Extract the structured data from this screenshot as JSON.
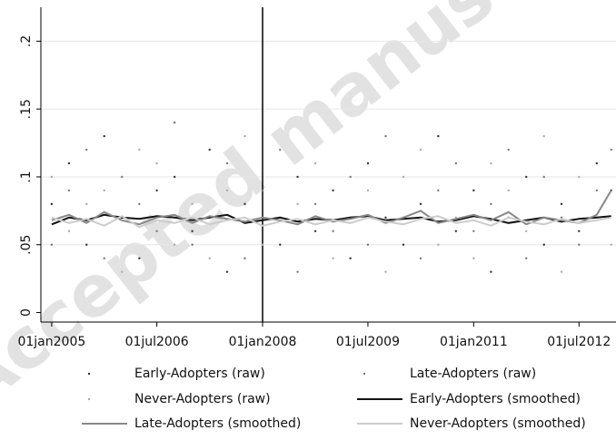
{
  "chart_data": {
    "type": "scatter-line",
    "watermark": "Accepted manuscript",
    "x": [
      "2005-01-01",
      "2005-04-01",
      "2005-07-01",
      "2005-10-01",
      "2006-01-01",
      "2006-04-01",
      "2006-07-01",
      "2006-10-01",
      "2007-01-01",
      "2007-04-01",
      "2007-07-01",
      "2007-10-01",
      "2008-01-01",
      "2008-04-01",
      "2008-07-01",
      "2008-10-01",
      "2009-01-01",
      "2009-04-01",
      "2009-07-01",
      "2009-10-01",
      "2010-01-01",
      "2010-04-01",
      "2010-07-01",
      "2010-10-01",
      "2011-01-01",
      "2011-04-01",
      "2011-07-01",
      "2011-10-01",
      "2012-01-01",
      "2012-04-01",
      "2012-07-01",
      "2012-10-01",
      "2012-12-15"
    ],
    "xlim": [
      "2004-11-06",
      "2013-01-09"
    ],
    "xticks": [
      {
        "value": "2005-01-01",
        "label": "01jan2005"
      },
      {
        "value": "2006-07-01",
        "label": "01jul2006"
      },
      {
        "value": "2008-01-01",
        "label": "01jan2008"
      },
      {
        "value": "2009-07-01",
        "label": "01jul2009"
      },
      {
        "value": "2011-01-01",
        "label": "01jan2011"
      },
      {
        "value": "2012-07-01",
        "label": "01jul2012"
      }
    ],
    "vline": "2008-01-01",
    "ylim": [
      -0.007,
      0.225
    ],
    "yticks": [
      0,
      {
        "value": 0.05,
        "label": ".05"
      },
      {
        "value": 0.1,
        "label": ".1"
      },
      {
        "value": 0.15,
        "label": ".15"
      },
      {
        "value": 0.2,
        "label": ".2"
      }
    ],
    "grid": true,
    "series": [
      {
        "name": "Early-Adopters (raw)",
        "kind": "points",
        "color": "#333333",
        "values": [
          0.08,
          0.11,
          0.05,
          0.13,
          0.07,
          0.04,
          0.09,
          0.1,
          0.06,
          0.12,
          0.03,
          0.08,
          0.07,
          0.05,
          0.1,
          0.06,
          0.09,
          0.04,
          0.11,
          0.07,
          0.05,
          0.08,
          0.13,
          0.06,
          0.09,
          0.03,
          0.07,
          0.1,
          0.05,
          0.08,
          0.06,
          0.11,
          0.09
        ]
      },
      {
        "name": "Late-Adopters (raw)",
        "kind": "points",
        "color": "#777777",
        "values": [
          0.05,
          0.09,
          0.12,
          0.04,
          0.1,
          0.08,
          0.06,
          0.14,
          0.05,
          0.07,
          0.11,
          0.04,
          0.09,
          0.12,
          0.03,
          0.08,
          0.06,
          0.1,
          0.05,
          0.13,
          0.07,
          0.04,
          0.09,
          0.11,
          0.06,
          0.08,
          0.12,
          0.04,
          0.1,
          0.07,
          0.05,
          0.09,
          0.12
        ]
      },
      {
        "name": "Never-Adopters (raw)",
        "kind": "points",
        "color": "#aaaaaa",
        "values": [
          0.1,
          0.06,
          0.08,
          0.09,
          0.03,
          0.12,
          0.11,
          0.05,
          0.08,
          0.04,
          0.09,
          0.13,
          0.05,
          0.07,
          0.08,
          0.11,
          0.04,
          0.07,
          0.09,
          0.03,
          0.1,
          0.12,
          0.05,
          0.07,
          0.04,
          0.11,
          0.09,
          0.06,
          0.13,
          0.03,
          0.1,
          0.07,
          0.05
        ]
      },
      {
        "name": "Early-Adopters (smoothed)",
        "kind": "line",
        "color": "#111111",
        "width": 2,
        "values": [
          0.065,
          0.07,
          0.068,
          0.072,
          0.07,
          0.069,
          0.071,
          0.07,
          0.068,
          0.07,
          0.072,
          0.066,
          0.068,
          0.07,
          0.067,
          0.069,
          0.068,
          0.07,
          0.071,
          0.068,
          0.069,
          0.07,
          0.067,
          0.068,
          0.071,
          0.069,
          0.066,
          0.068,
          0.07,
          0.067,
          0.069,
          0.07,
          0.071
        ]
      },
      {
        "name": "Late-Adopters (smoothed)",
        "kind": "line",
        "color": "#888888",
        "width": 2,
        "values": [
          0.068,
          0.072,
          0.066,
          0.074,
          0.068,
          0.065,
          0.07,
          0.072,
          0.066,
          0.071,
          0.069,
          0.067,
          0.07,
          0.068,
          0.065,
          0.071,
          0.067,
          0.069,
          0.072,
          0.066,
          0.07,
          0.075,
          0.066,
          0.069,
          0.072,
          0.068,
          0.074,
          0.065,
          0.07,
          0.068,
          0.066,
          0.072,
          0.09
        ]
      },
      {
        "name": "Never-Adopters (smoothed)",
        "kind": "line",
        "color": "#cccccc",
        "width": 2,
        "values": [
          0.07,
          0.066,
          0.069,
          0.064,
          0.071,
          0.063,
          0.068,
          0.066,
          0.07,
          0.065,
          0.068,
          0.07,
          0.064,
          0.067,
          0.069,
          0.065,
          0.068,
          0.066,
          0.07,
          0.067,
          0.065,
          0.069,
          0.071,
          0.066,
          0.068,
          0.064,
          0.07,
          0.067,
          0.065,
          0.069,
          0.066,
          0.068,
          0.07
        ]
      }
    ],
    "legend": "bottom"
  }
}
